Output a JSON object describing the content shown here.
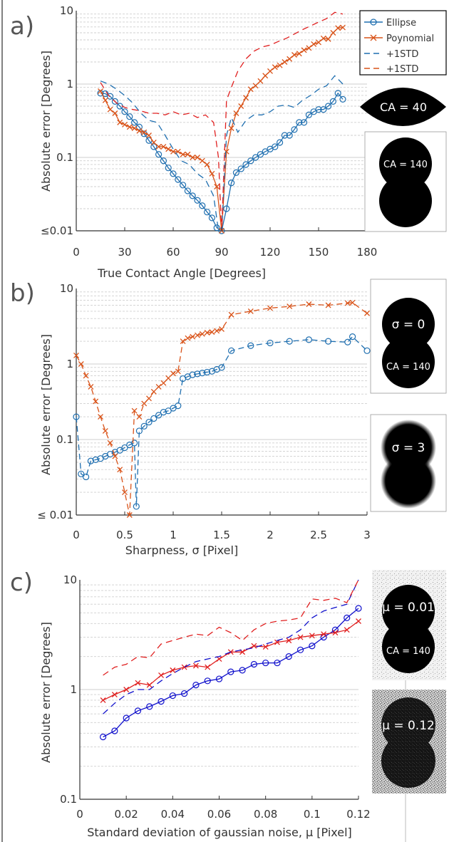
{
  "colors": {
    "ellipse": "#1f6fb0",
    "polynomial": "#d95319",
    "blue_c": "#1010cc",
    "red_c": "#e02020",
    "grid": "#cfcfcf",
    "axis": "#333333"
  },
  "chart_data": [
    {
      "panel_label": "a)",
      "type": "line",
      "xlabel": "True Contact Angle [Degrees]",
      "ylabel": "Absolute error [Degrees]",
      "xlim": [
        0,
        180
      ],
      "ylim": [
        0.01,
        10
      ],
      "y_scale": "log",
      "grid": true,
      "x_ticks": [
        "0",
        "30",
        "60",
        "90",
        "120",
        "150",
        "180"
      ],
      "y_ticks": [
        "≤0.01",
        "0.1",
        "1",
        "10"
      ],
      "legend_position": "top-right",
      "legend": [
        "Ellipse",
        "Poynomial",
        "+1STD",
        "+1STD"
      ],
      "insets": [
        "CA = 40",
        "CA = 140"
      ],
      "series": [
        {
          "name": "Ellipse",
          "x": [
            15,
            18,
            21,
            24,
            27,
            30,
            33,
            36,
            39,
            42,
            45,
            48,
            51,
            54,
            57,
            60,
            63,
            66,
            69,
            72,
            75,
            78,
            81,
            84,
            87,
            90,
            93,
            96,
            99,
            102,
            105,
            108,
            111,
            114,
            117,
            120,
            123,
            126,
            129,
            132,
            135,
            138,
            141,
            144,
            147,
            150,
            153,
            156,
            159,
            162,
            165
          ],
          "y": [
            0.75,
            0.74,
            0.68,
            0.58,
            0.5,
            0.42,
            0.36,
            0.3,
            0.26,
            0.21,
            0.17,
            0.14,
            0.11,
            0.09,
            0.072,
            0.06,
            0.05,
            0.042,
            0.035,
            0.03,
            0.026,
            0.022,
            0.018,
            0.015,
            0.011,
            0.01,
            0.02,
            0.045,
            0.062,
            0.07,
            0.08,
            0.09,
            0.1,
            0.11,
            0.12,
            0.13,
            0.14,
            0.16,
            0.2,
            0.2,
            0.24,
            0.3,
            0.3,
            0.38,
            0.42,
            0.45,
            0.45,
            0.5,
            0.58,
            0.75,
            0.62
          ]
        },
        {
          "name": "Poynomial",
          "x": [
            15,
            18,
            21,
            24,
            27,
            30,
            33,
            36,
            39,
            42,
            45,
            48,
            51,
            54,
            57,
            60,
            63,
            66,
            69,
            72,
            75,
            78,
            81,
            84,
            87,
            90,
            93,
            96,
            99,
            102,
            105,
            108,
            111,
            114,
            117,
            120,
            123,
            126,
            129,
            132,
            135,
            138,
            141,
            144,
            147,
            150,
            153,
            156,
            159,
            162,
            165
          ],
          "y": [
            0.8,
            0.6,
            0.45,
            0.4,
            0.3,
            0.28,
            0.26,
            0.25,
            0.23,
            0.22,
            0.2,
            0.16,
            0.14,
            0.14,
            0.13,
            0.12,
            0.12,
            0.11,
            0.11,
            0.1,
            0.1,
            0.09,
            0.08,
            0.06,
            0.04,
            0.01,
            0.12,
            0.25,
            0.4,
            0.5,
            0.65,
            0.85,
            0.95,
            1.1,
            1.3,
            1.5,
            1.7,
            1.8,
            2.0,
            2.2,
            2.5,
            2.6,
            2.9,
            3.1,
            3.5,
            3.7,
            4.2,
            4.1,
            5.0,
            5.8,
            5.9
          ]
        },
        {
          "name": "+1STD",
          "x": [
            15,
            20,
            25,
            30,
            35,
            40,
            45,
            50,
            55,
            60,
            65,
            70,
            75,
            80,
            85,
            88,
            90,
            93,
            96,
            100,
            105,
            110,
            115,
            120,
            125,
            130,
            135,
            140,
            145,
            150,
            155,
            160,
            165
          ],
          "y": [
            1.1,
            1.0,
            0.85,
            0.7,
            0.55,
            0.4,
            0.32,
            0.3,
            0.2,
            0.13,
            0.09,
            0.08,
            0.06,
            0.05,
            0.03,
            0.01,
            0.01,
            0.2,
            0.35,
            0.22,
            0.32,
            0.38,
            0.38,
            0.42,
            0.5,
            0.52,
            0.48,
            0.6,
            0.7,
            0.85,
            0.95,
            1.3,
            1.0
          ]
        },
        {
          "name": "+1STD",
          "x": [
            15,
            20,
            25,
            30,
            35,
            40,
            45,
            50,
            55,
            60,
            65,
            70,
            75,
            80,
            85,
            88,
            90,
            93,
            96,
            100,
            105,
            110,
            115,
            120,
            125,
            130,
            135,
            140,
            145,
            150,
            155,
            160,
            165
          ],
          "y": [
            1.05,
            0.7,
            0.55,
            0.48,
            0.45,
            0.43,
            0.4,
            0.4,
            0.38,
            0.42,
            0.38,
            0.4,
            0.35,
            0.38,
            0.3,
            0.1,
            0.01,
            0.6,
            0.9,
            1.5,
            2.2,
            2.8,
            3.2,
            3.4,
            3.8,
            4.2,
            4.8,
            5.5,
            6.2,
            7.0,
            7.8,
            9.5,
            9.0
          ]
        }
      ]
    },
    {
      "panel_label": "b)",
      "type": "line",
      "xlabel": "Sharpness, σ [Pixel]",
      "ylabel": "Absolute error [Degrees]",
      "xlim": [
        0,
        3
      ],
      "ylim": [
        0.01,
        10
      ],
      "y_scale": "log",
      "grid": true,
      "x_ticks": [
        "0",
        "0.5",
        "1",
        "1.5",
        "2",
        "2.5",
        "3"
      ],
      "y_ticks": [
        "≤ 0.01",
        "0.1",
        "1",
        "10"
      ],
      "insets": [
        "σ = 0",
        "CA = 140",
        "σ = 3"
      ],
      "series": [
        {
          "x": [
            0,
            0.05,
            0.1,
            0.15,
            0.2,
            0.25,
            0.3,
            0.35,
            0.4,
            0.45,
            0.5,
            0.55,
            0.6,
            0.62,
            0.65,
            0.7,
            0.75,
            0.8,
            0.85,
            0.9,
            0.95,
            1.0,
            1.05,
            1.1,
            1.15,
            1.2,
            1.25,
            1.3,
            1.35,
            1.4,
            1.45,
            1.5,
            1.6,
            1.8,
            2.0,
            2.2,
            2.4,
            2.6,
            2.8,
            2.85,
            3.0
          ],
          "y": [
            0.2,
            0.035,
            0.032,
            0.052,
            0.054,
            0.056,
            0.06,
            0.064,
            0.068,
            0.072,
            0.078,
            0.085,
            0.09,
            0.013,
            0.13,
            0.15,
            0.17,
            0.19,
            0.21,
            0.23,
            0.24,
            0.26,
            0.28,
            0.64,
            0.68,
            0.72,
            0.74,
            0.76,
            0.78,
            0.8,
            0.85,
            0.9,
            1.5,
            1.75,
            1.9,
            2.0,
            2.1,
            2.0,
            1.95,
            2.3,
            1.5
          ]
        },
        {
          "x": [
            0,
            0.05,
            0.1,
            0.15,
            0.2,
            0.25,
            0.3,
            0.35,
            0.4,
            0.45,
            0.5,
            0.55,
            0.6,
            0.65,
            0.7,
            0.75,
            0.8,
            0.85,
            0.9,
            0.95,
            1.0,
            1.05,
            1.1,
            1.15,
            1.2,
            1.25,
            1.3,
            1.35,
            1.4,
            1.45,
            1.5,
            1.6,
            1.8,
            2.0,
            2.2,
            2.4,
            2.6,
            2.8,
            2.85,
            3.0
          ],
          "y": [
            1.3,
            1.0,
            0.7,
            0.5,
            0.32,
            0.2,
            0.13,
            0.09,
            0.06,
            0.04,
            0.02,
            0.01,
            0.24,
            0.2,
            0.3,
            0.35,
            0.43,
            0.5,
            0.56,
            0.65,
            0.75,
            0.8,
            2.0,
            2.2,
            2.3,
            2.4,
            2.5,
            2.6,
            2.65,
            2.75,
            2.9,
            4.5,
            5.0,
            5.5,
            5.8,
            6.2,
            6.0,
            6.4,
            6.5,
            4.7
          ]
        }
      ]
    },
    {
      "panel_label": "c)",
      "type": "line",
      "xlabel": "Standard deviation of gaussian noise, μ [Pixel]",
      "ylabel": "Absolute error [Degrees]",
      "xlim": [
        0,
        0.12
      ],
      "ylim": [
        0.1,
        10
      ],
      "y_scale": "log",
      "grid": true,
      "x_ticks": [
        "0",
        "0.02",
        "0.04",
        "0.06",
        "0.08",
        "0.1",
        "0.12"
      ],
      "y_ticks": [
        "0.1",
        "1",
        "10"
      ],
      "insets": [
        "μ = 0.01",
        "CA = 140",
        "μ = 0.12"
      ],
      "series": [
        {
          "x": [
            0.01,
            0.015,
            0.02,
            0.025,
            0.03,
            0.035,
            0.04,
            0.045,
            0.05,
            0.055,
            0.06,
            0.065,
            0.07,
            0.075,
            0.08,
            0.085,
            0.09,
            0.095,
            0.1,
            0.105,
            0.11,
            0.115,
            0.12
          ],
          "y": [
            0.37,
            0.42,
            0.55,
            0.64,
            0.7,
            0.78,
            0.88,
            0.92,
            1.1,
            1.2,
            1.25,
            1.45,
            1.5,
            1.7,
            1.75,
            1.75,
            2.0,
            2.3,
            2.5,
            3.0,
            3.5,
            4.5,
            5.5
          ]
        },
        {
          "x": [
            0.01,
            0.015,
            0.02,
            0.025,
            0.03,
            0.035,
            0.04,
            0.045,
            0.05,
            0.055,
            0.06,
            0.065,
            0.07,
            0.075,
            0.08,
            0.085,
            0.09,
            0.095,
            0.1,
            0.105,
            0.11,
            0.115,
            0.12
          ],
          "y": [
            0.8,
            0.9,
            1.0,
            1.15,
            1.1,
            1.35,
            1.5,
            1.6,
            1.65,
            1.6,
            1.9,
            2.2,
            2.2,
            2.5,
            2.45,
            2.7,
            2.8,
            3.0,
            3.1,
            3.2,
            3.3,
            3.5,
            4.2
          ]
        },
        {
          "x": [
            0.01,
            0.015,
            0.02,
            0.025,
            0.03,
            0.035,
            0.04,
            0.045,
            0.05,
            0.055,
            0.06,
            0.065,
            0.07,
            0.075,
            0.08,
            0.085,
            0.09,
            0.095,
            0.1,
            0.105,
            0.11,
            0.115,
            0.12
          ],
          "y": [
            0.6,
            0.75,
            0.9,
            1.0,
            1.0,
            1.2,
            1.4,
            1.6,
            1.8,
            1.9,
            2.0,
            2.2,
            2.3,
            2.4,
            2.6,
            2.8,
            3.0,
            3.5,
            4.5,
            5.2,
            5.6,
            6.0,
            10.0
          ]
        },
        {
          "x": [
            0.01,
            0.015,
            0.02,
            0.025,
            0.03,
            0.035,
            0.04,
            0.045,
            0.05,
            0.055,
            0.06,
            0.065,
            0.07,
            0.075,
            0.08,
            0.085,
            0.09,
            0.095,
            0.1,
            0.105,
            0.11,
            0.115,
            0.12
          ],
          "y": [
            1.35,
            1.6,
            1.7,
            2.0,
            1.95,
            2.6,
            2.8,
            3.0,
            3.2,
            3.1,
            3.7,
            3.3,
            2.8,
            3.5,
            4.0,
            4.2,
            4.3,
            4.5,
            6.7,
            6.5,
            6.8,
            6.2,
            10.0
          ]
        }
      ]
    }
  ]
}
